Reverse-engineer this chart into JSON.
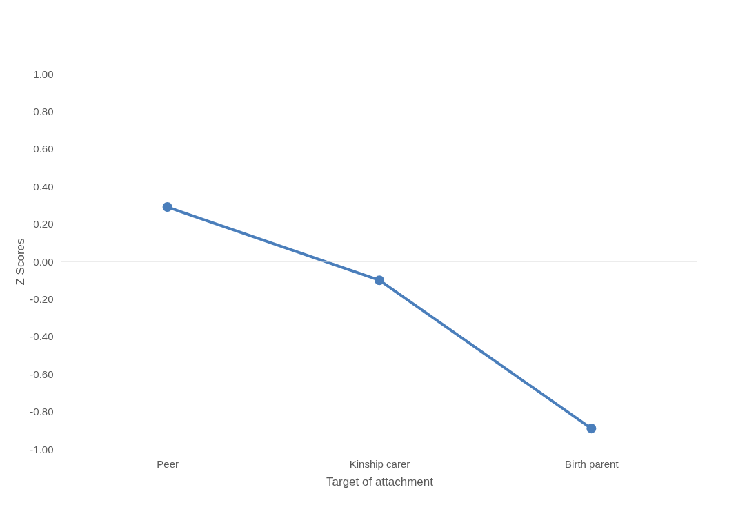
{
  "chart_data": {
    "type": "line",
    "xlabel": "Target of attachment",
    "ylabel": "Z Scores",
    "categories": [
      "Peer",
      "Kinship carer",
      "Birth parent"
    ],
    "series": [
      {
        "color": "#4a7ebb",
        "values": [
          0.29,
          -0.1,
          -0.89
        ]
      }
    ],
    "ylim": [
      -1,
      1
    ],
    "yticks": [
      {
        "value": -1,
        "label": "-1.00"
      },
      {
        "value": -0.8,
        "label": "-0.80"
      },
      {
        "value": -0.6,
        "label": "-0.60"
      },
      {
        "value": -0.4,
        "label": "-0.40"
      },
      {
        "value": -0.2,
        "label": "-0.20"
      },
      {
        "value": 0,
        "label": "0.00"
      },
      {
        "value": 0.2,
        "label": "0.20"
      },
      {
        "value": 0.4,
        "label": "0.40"
      },
      {
        "value": 0.6,
        "label": "0.60"
      },
      {
        "value": 0.8,
        "label": "0.80"
      },
      {
        "value": 1,
        "label": "1.00"
      }
    ],
    "ref_lines": [
      {
        "axis": "y",
        "value": 0,
        "color": "#d9d9d9"
      }
    ],
    "grid": false,
    "marker": "circle",
    "line_style": "solid"
  }
}
